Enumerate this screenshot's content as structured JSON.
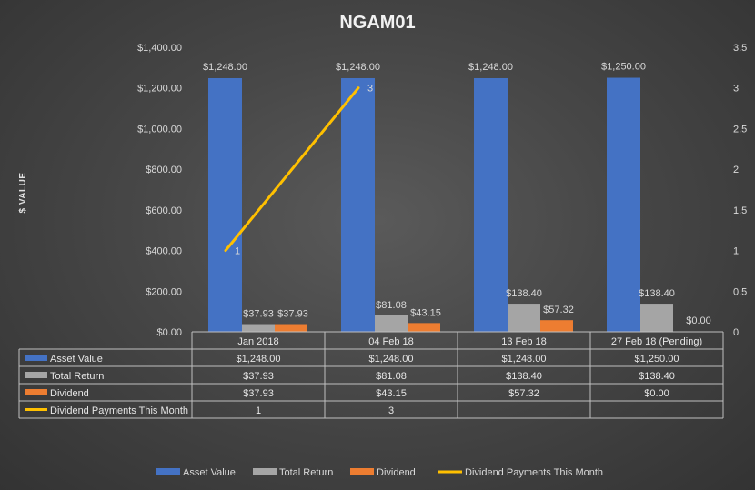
{
  "chart_data": {
    "type": "bar",
    "title": "NGAM01",
    "ylabel": "$ VALUE",
    "y2label": "",
    "categories": [
      "Jan 2018",
      "04 Feb 18",
      "13 Feb 18",
      "27 Feb 18 (Pending)"
    ],
    "ylim": [
      0,
      1400
    ],
    "y2lim": [
      0,
      3.5
    ],
    "yticks": [
      "$0.00",
      "$200.00",
      "$400.00",
      "$600.00",
      "$800.00",
      "$1,000.00",
      "$1,200.00",
      "$1,400.00"
    ],
    "y2ticks": [
      "0",
      "0.5",
      "1",
      "1.5",
      "2",
      "2.5",
      "3",
      "3.5"
    ],
    "grid": false,
    "legend_position": "bottom",
    "series": [
      {
        "name": "Asset Value",
        "type": "bar",
        "axis": "left",
        "color": "#4472c4",
        "values": [
          1248.0,
          1248.0,
          1248.0,
          1250.0
        ],
        "labels": [
          "$1,248.00",
          "$1,248.00",
          "$1,248.00",
          "$1,250.00"
        ]
      },
      {
        "name": "Total Return",
        "type": "bar",
        "axis": "left",
        "color": "#a5a5a5",
        "values": [
          37.93,
          81.08,
          138.4,
          138.4
        ],
        "labels": [
          "$37.93",
          "$81.08",
          "$138.40",
          "$138.40"
        ]
      },
      {
        "name": "Dividend",
        "type": "bar",
        "axis": "left",
        "color": "#ed7d31",
        "values": [
          37.93,
          43.15,
          57.32,
          0.0
        ],
        "labels": [
          "$37.93",
          "$43.15",
          "$57.32",
          "$0.00"
        ]
      },
      {
        "name": "Dividend Payments This Month",
        "type": "line",
        "axis": "right",
        "color": "#ffc000",
        "values": [
          1,
          3,
          null,
          null
        ],
        "labels": [
          "1",
          "3",
          "",
          ""
        ]
      }
    ]
  }
}
